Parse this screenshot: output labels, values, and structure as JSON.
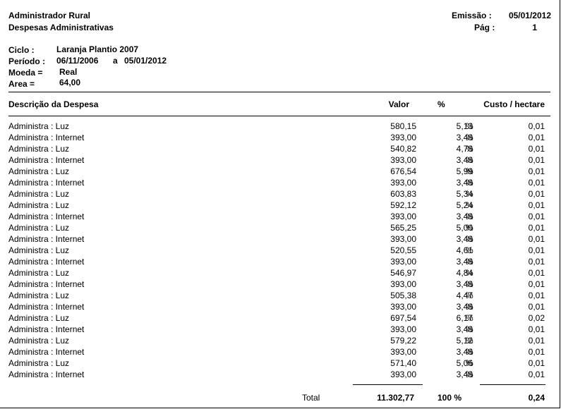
{
  "header": {
    "title": "Administrador Rural",
    "subtitle": "Despesas Administrativas",
    "emission_label": "Emissão :",
    "emission_date": "05/01/2012",
    "page_label": "Pág :",
    "page_number": "1"
  },
  "info": {
    "ciclo_label": "Ciclo :",
    "ciclo_value": "Laranja Plantio 2007",
    "periodo_label": "Período :",
    "periodo_start": "06/11/2006",
    "periodo_sep": "a",
    "periodo_end": "05/01/2012",
    "moeda_label": "Moeda =",
    "moeda_value": "Real",
    "area_label": "Area =",
    "area_value": "64,00"
  },
  "table": {
    "columns": {
      "descricao": "Descrição da Despesa",
      "valor": "Valor",
      "pct": "%",
      "custo": "Custo / hectare"
    },
    "pct_symbol": "%",
    "rows": [
      {
        "desc": "Administra : Luz",
        "valor": "580,15",
        "pct": "5,13",
        "custo": "0,01"
      },
      {
        "desc": "Administra : Internet",
        "valor": "393,00",
        "pct": "3,48",
        "custo": "0,01"
      },
      {
        "desc": "Administra : Luz",
        "valor": "540,82",
        "pct": "4,78",
        "custo": "0,01"
      },
      {
        "desc": "Administra : Internet",
        "valor": "393,00",
        "pct": "3,48",
        "custo": "0,01"
      },
      {
        "desc": "Administra : Luz",
        "valor": "676,54",
        "pct": "5,99",
        "custo": "0,01"
      },
      {
        "desc": "Administra : Internet",
        "valor": "393,00",
        "pct": "3,48",
        "custo": "0,01"
      },
      {
        "desc": "Administra : Luz",
        "valor": "603,83",
        "pct": "5,34",
        "custo": "0,01"
      },
      {
        "desc": "Administra : Luz",
        "valor": "592,12",
        "pct": "5,24",
        "custo": "0,01"
      },
      {
        "desc": "Administra : Internet",
        "valor": "393,00",
        "pct": "3,48",
        "custo": "0,01"
      },
      {
        "desc": "Administra : Luz",
        "valor": "565,25",
        "pct": "5,00",
        "custo": "0,01"
      },
      {
        "desc": "Administra : Internet",
        "valor": "393,00",
        "pct": "3,48",
        "custo": "0,01"
      },
      {
        "desc": "Administra : Luz",
        "valor": "520,55",
        "pct": "4,61",
        "custo": "0,01"
      },
      {
        "desc": "Administra : Internet",
        "valor": "393,00",
        "pct": "3,48",
        "custo": "0,01"
      },
      {
        "desc": "Administra : Luz",
        "valor": "546,97",
        "pct": "4,84",
        "custo": "0,01"
      },
      {
        "desc": "Administra : Internet",
        "valor": "393,00",
        "pct": "3,48",
        "custo": "0,01"
      },
      {
        "desc": "Administra : Luz",
        "valor": "505,38",
        "pct": "4,47",
        "custo": "0,01"
      },
      {
        "desc": "Administra : Internet",
        "valor": "393,00",
        "pct": "3,48",
        "custo": "0,01"
      },
      {
        "desc": "Administra : Luz",
        "valor": "697,54",
        "pct": "6,17",
        "custo": "0,02"
      },
      {
        "desc": "Administra : Internet",
        "valor": "393,00",
        "pct": "3,48",
        "custo": "0,01"
      },
      {
        "desc": "Administra : Luz",
        "valor": "579,22",
        "pct": "5,12",
        "custo": "0,01"
      },
      {
        "desc": "Administra : Internet",
        "valor": "393,00",
        "pct": "3,48",
        "custo": "0,01"
      },
      {
        "desc": "Administra : Luz",
        "valor": "571,40",
        "pct": "5,06",
        "custo": "0,01"
      },
      {
        "desc": "Administra : Internet",
        "valor": "393,00",
        "pct": "3,48",
        "custo": "0,01"
      }
    ]
  },
  "totals": {
    "label": "Total",
    "valor": "11.302,77",
    "pct": "100 %",
    "custo": "0,24"
  }
}
